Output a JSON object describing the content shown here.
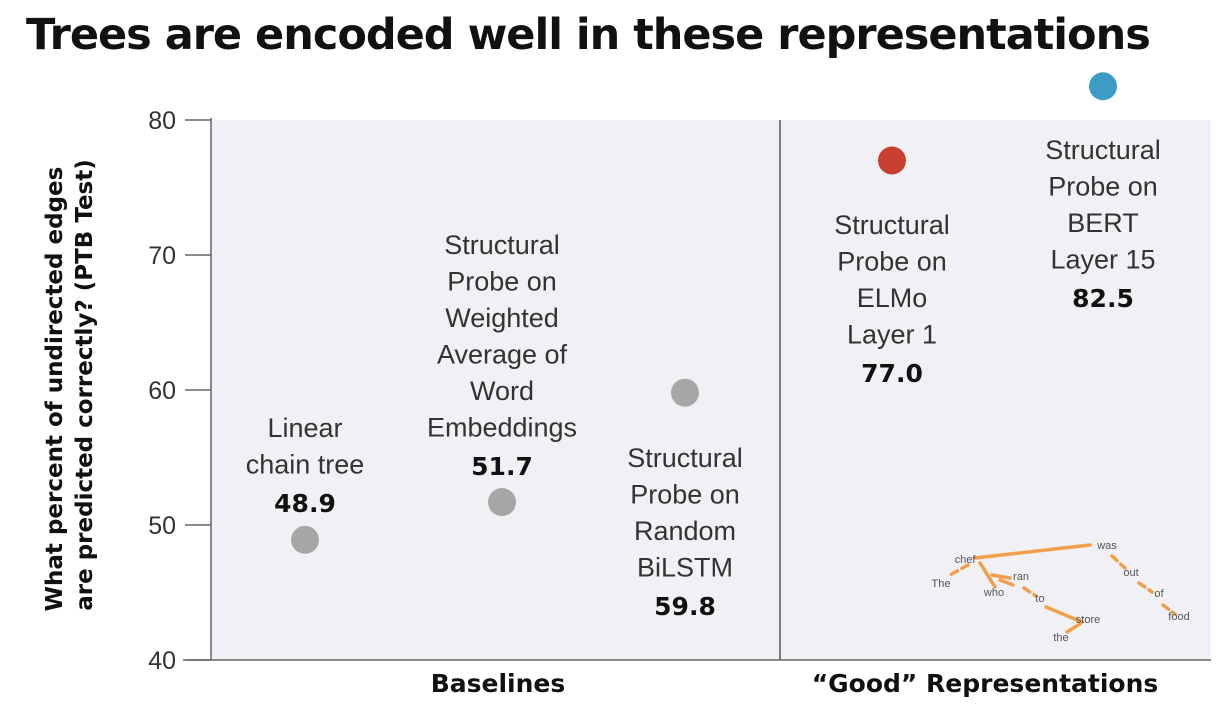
{
  "title": "Trees are encoded well in these representations",
  "chart_data": {
    "type": "scatter",
    "ylabel_lines": [
      "What percent of undirected edges",
      "are predicted correctly? (PTB Test)"
    ],
    "ylim": [
      40,
      80
    ],
    "yticks": [
      40,
      50,
      60,
      70,
      80
    ],
    "grid": false,
    "groups": [
      "Baselines",
      "“Good” Representations"
    ],
    "points": [
      {
        "label_lines": [
          "Linear",
          "chain tree"
        ],
        "value": 48.9,
        "value_text": "48.9",
        "color": "#a6a6a6",
        "group": "Baselines"
      },
      {
        "label_lines": [
          "Structural",
          "Probe on",
          "Weighted",
          "Average of",
          "Word",
          "Embeddings"
        ],
        "value": 51.7,
        "value_text": "51.7",
        "color": "#a6a6a6",
        "group": "Baselines"
      },
      {
        "label_lines": [
          "Structural",
          "Probe on",
          "Random",
          "BiLSTM"
        ],
        "value": 59.8,
        "value_text": "59.8",
        "color": "#a6a6a6",
        "group": "Baselines"
      },
      {
        "label_lines": [
          "Structural",
          "Probe on",
          "ELMo",
          "Layer 1"
        ],
        "value": 77.0,
        "value_text": "77.0",
        "color": "#c9412e",
        "group": "“Good” Representations"
      },
      {
        "label_lines": [
          "Structural",
          "Probe on",
          "BERT",
          "Layer 15"
        ],
        "value": 82.5,
        "value_text": "82.5",
        "color": "#3d9cc4",
        "group": "“Good” Representations"
      }
    ]
  },
  "tree_inset": {
    "words": [
      "The",
      "chef",
      "who",
      "ran",
      "to",
      "the",
      "store",
      "was",
      "out",
      "of",
      "food"
    ],
    "line_color": "#f0a04b"
  }
}
